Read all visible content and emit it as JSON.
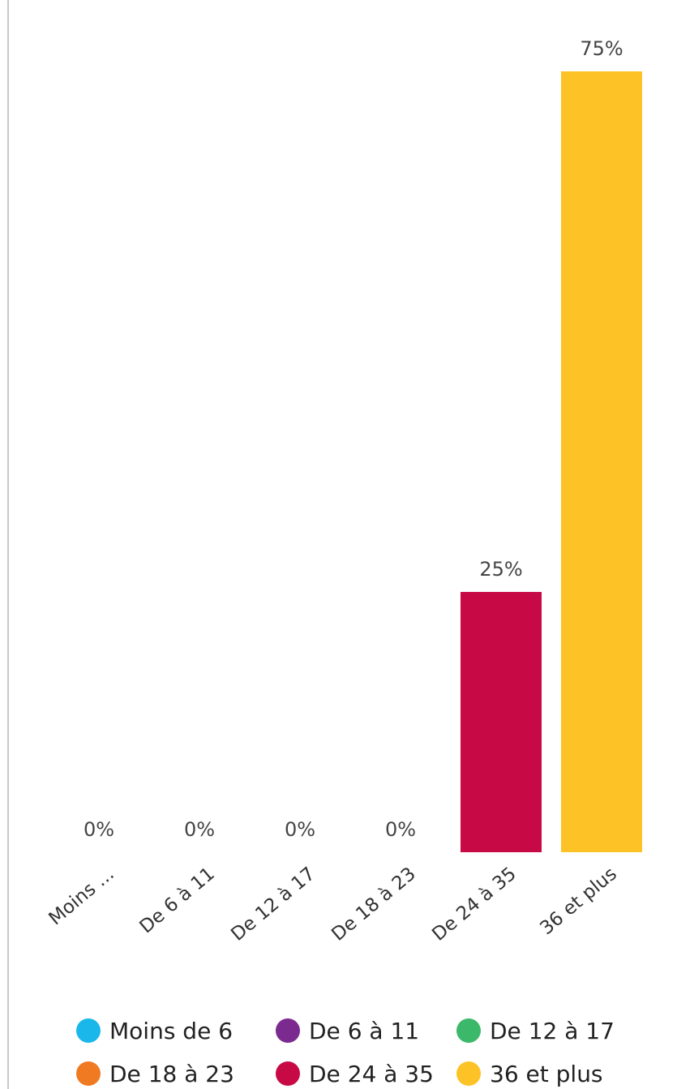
{
  "chart_data": {
    "type": "bar",
    "categories": [
      "Moins de 6",
      "De 6 à 11",
      "De 12 à 17",
      "De 18 à 23",
      "De 24 à 35",
      "36 et plus"
    ],
    "tick_labels": [
      "Moins ...",
      "De 6 à 11",
      "De 12 à 17",
      "De 18 à 23",
      "De 24 à 35",
      "36 et plus"
    ],
    "values": [
      0,
      0,
      0,
      0,
      25,
      75
    ],
    "value_labels": [
      "0%",
      "0%",
      "0%",
      "0%",
      "25%",
      "75%"
    ],
    "colors": [
      "#1ab7ea",
      "#7b2a8f",
      "#3cb86a",
      "#f07a22",
      "#c70a45",
      "#fdc326"
    ],
    "ylim": [
      0,
      75
    ],
    "unit": "%",
    "grid": false,
    "legend": {
      "position": "bottom",
      "items": [
        "Moins de 6",
        "De 6 à 11",
        "De 12 à 17",
        "De 18 à 23",
        "De 24 à 35",
        "36 et plus"
      ]
    }
  }
}
